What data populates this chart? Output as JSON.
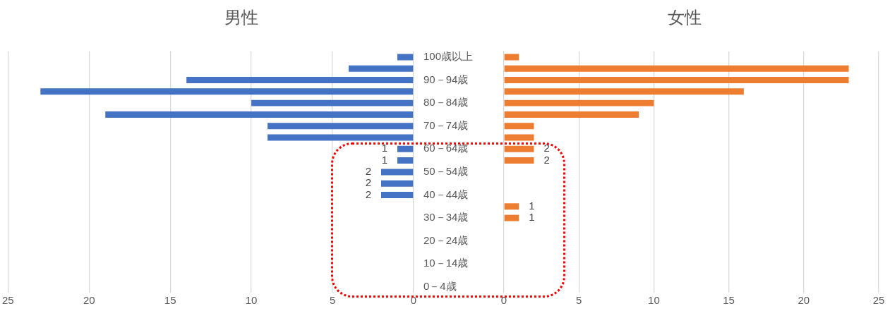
{
  "chart_data": [
    {
      "type": "bar",
      "orientation": "horizontal",
      "title": "男性",
      "categories": [
        "100歳以上",
        null,
        "90－94歳",
        null,
        "80－84歳",
        null,
        "70－74歳",
        null,
        "60－64歳",
        null,
        "50－54歳",
        null,
        "40－44歳",
        null,
        "30－34歳",
        null,
        "20－24歳",
        null,
        "10－14歳",
        null,
        "0－4歳"
      ],
      "values": [
        1,
        4,
        14,
        23,
        10,
        19,
        9,
        9,
        1,
        1,
        2,
        2,
        2,
        0,
        0,
        0,
        0,
        0,
        0,
        0,
        0
      ],
      "color": "#4472c4",
      "value_labels": [
        null,
        null,
        null,
        null,
        null,
        null,
        null,
        null,
        "1",
        "1",
        "2",
        "2",
        "2",
        null,
        null,
        null,
        null,
        null,
        null,
        null,
        null
      ],
      "xlim": [
        25,
        0
      ],
      "xticks": [
        25,
        20,
        15,
        10,
        5,
        0
      ],
      "grid": "x"
    },
    {
      "type": "bar",
      "orientation": "horizontal",
      "title": "女性",
      "categories": [
        null,
        null,
        null,
        null,
        null,
        null,
        null,
        null,
        null,
        null,
        null,
        null,
        null,
        null,
        null,
        null,
        null,
        null,
        null,
        null,
        null
      ],
      "values": [
        1,
        23,
        23,
        16,
        10,
        9,
        2,
        2,
        2,
        2,
        0,
        0,
        0,
        1,
        1,
        0,
        0,
        0,
        0,
        0,
        0
      ],
      "color": "#ed7d31",
      "value_labels": [
        null,
        null,
        null,
        null,
        null,
        null,
        null,
        null,
        "2",
        "2",
        null,
        null,
        null,
        "1",
        "1",
        null,
        null,
        null,
        null,
        null,
        null
      ],
      "xlim": [
        0,
        25
      ],
      "xticks": [
        0,
        5,
        10,
        15,
        20,
        25
      ],
      "grid": "x"
    }
  ]
}
